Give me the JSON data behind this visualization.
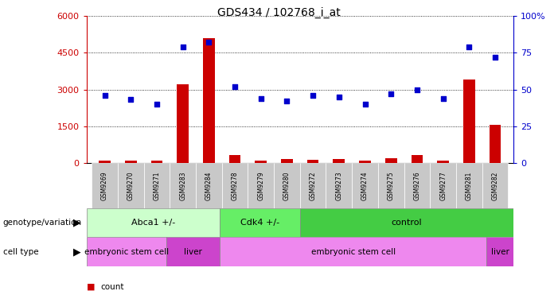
{
  "title": "GDS434 / 102768_i_at",
  "samples": [
    "GSM9269",
    "GSM9270",
    "GSM9271",
    "GSM9283",
    "GSM9284",
    "GSM9278",
    "GSM9279",
    "GSM9280",
    "GSM9272",
    "GSM9273",
    "GSM9274",
    "GSM9275",
    "GSM9276",
    "GSM9277",
    "GSM9281",
    "GSM9282"
  ],
  "counts": [
    90,
    95,
    80,
    3200,
    5100,
    330,
    90,
    150,
    130,
    145,
    90,
    190,
    330,
    100,
    3400,
    1550
  ],
  "percentile": [
    46,
    43,
    40,
    79,
    82,
    52,
    44,
    42,
    46,
    45,
    40,
    47,
    50,
    44,
    79,
    72
  ],
  "genotype_groups": [
    {
      "label": "Abca1 +/-",
      "start": 0,
      "end": 5,
      "color": "#ccffcc"
    },
    {
      "label": "Cdk4 +/-",
      "start": 5,
      "end": 8,
      "color": "#66ee66"
    },
    {
      "label": "control",
      "start": 8,
      "end": 16,
      "color": "#44cc44"
    }
  ],
  "cell_type_groups": [
    {
      "label": "embryonic stem cell",
      "start": 0,
      "end": 3,
      "color": "#ee88ee"
    },
    {
      "label": "liver",
      "start": 3,
      "end": 5,
      "color": "#cc44cc"
    },
    {
      "label": "embryonic stem cell",
      "start": 5,
      "end": 15,
      "color": "#ee88ee"
    },
    {
      "label": "liver",
      "start": 15,
      "end": 16,
      "color": "#cc44cc"
    }
  ],
  "bar_color": "#cc0000",
  "scatter_color": "#0000cc",
  "ylim_left": [
    0,
    6000
  ],
  "ylim_right": [
    0,
    100
  ],
  "yticks_left": [
    0,
    1500,
    3000,
    4500,
    6000
  ],
  "ytick_labels_left": [
    "0",
    "1500",
    "3000",
    "4500",
    "6000"
  ],
  "yticks_right": [
    0,
    25,
    50,
    75,
    100
  ],
  "ytick_labels_right": [
    "0",
    "25",
    "50",
    "75",
    "100%"
  ],
  "legend_count_color": "#cc0000",
  "legend_scatter_color": "#0000cc",
  "background_color": "#ffffff",
  "grid_color": "#000000",
  "label_bg_color": "#c8c8c8"
}
